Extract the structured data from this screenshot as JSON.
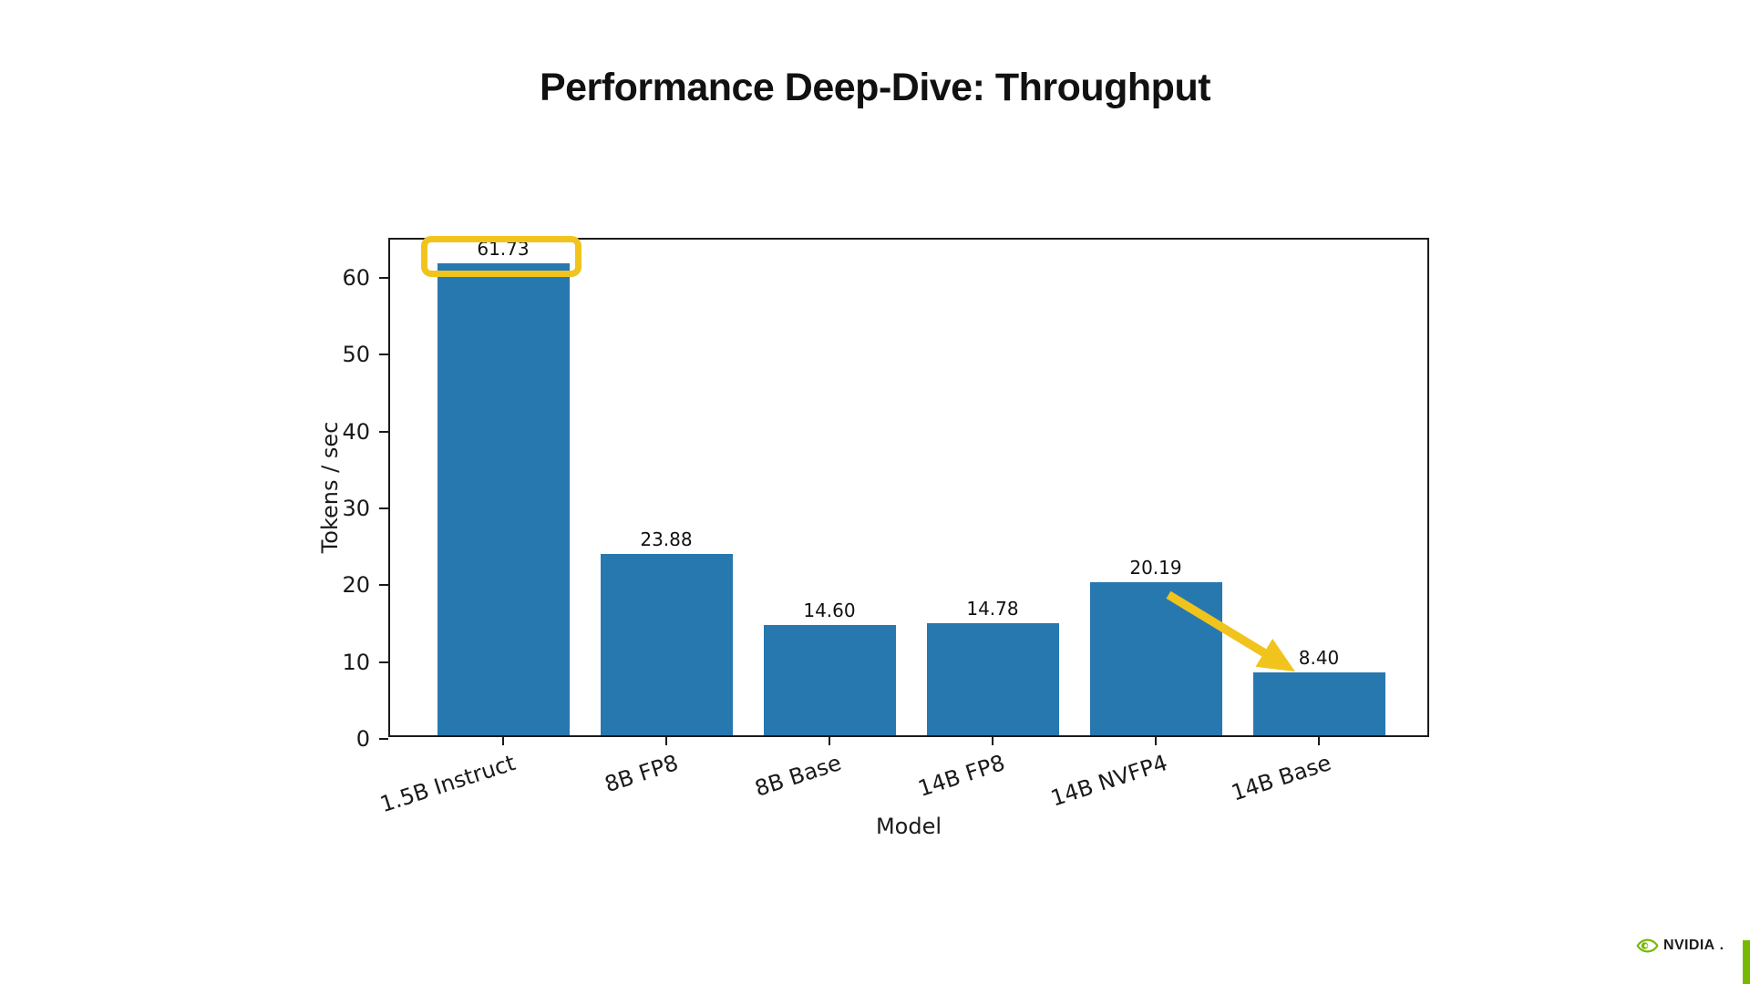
{
  "slide": {
    "title": "Performance Deep-Dive: Throughput",
    "background": "#ffffff"
  },
  "chart_data": {
    "type": "bar",
    "categories": [
      "1.5B Instruct",
      "8B FP8",
      "8B Base",
      "14B FP8",
      "14B NVFP4",
      "14B Base"
    ],
    "values": [
      61.73,
      23.88,
      14.6,
      14.78,
      20.19,
      8.4
    ],
    "value_labels": [
      "61.73",
      "23.88",
      "14.60",
      "14.78",
      "20.19",
      "8.40"
    ],
    "title": "Performance Deep-Dive: Throughput",
    "xlabel": "Model",
    "ylabel": "Tokens / sec",
    "ylim": [
      0,
      65
    ],
    "yticks": [
      0,
      10,
      20,
      30,
      40,
      50,
      60
    ],
    "grid": false,
    "legend": null,
    "bar_color": "#2878b0",
    "axis_color": "#1a1a1a",
    "x_tick_rotation_deg": -18,
    "annotations": {
      "highlight_box": {
        "bar_index": 0,
        "color": "#f0c41c"
      },
      "arrow": {
        "from_bar_index": 4,
        "to_bar_index": 5,
        "color": "#f0c41c"
      }
    }
  },
  "footer": {
    "logo_text": "NVIDIA",
    "logo_mark": ".",
    "brand_green": "#76b900"
  }
}
